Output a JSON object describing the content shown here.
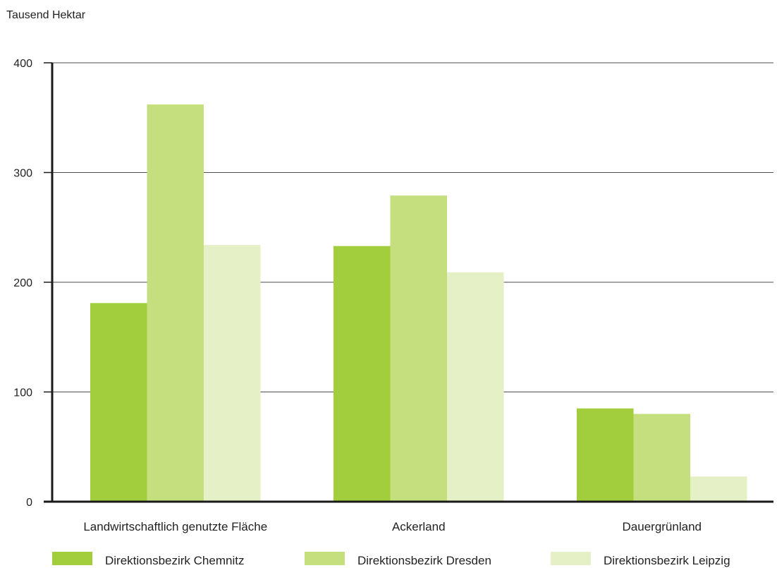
{
  "chart_data": {
    "type": "bar",
    "ylabel": "Tausend Hektar",
    "categories": [
      "Landwirtschaftlich genutzte Fläche",
      "Ackerland",
      "Dauergrünland"
    ],
    "series": [
      {
        "name": "Direktionsbezirk Chemnitz",
        "color": "#a2cd3c",
        "values": [
          181,
          233,
          85
        ]
      },
      {
        "name": "Direktionsbezirk Dresden",
        "color": "#c5de7e",
        "values": [
          362,
          279,
          80
        ]
      },
      {
        "name": "Direktionsbezirk Leipzig",
        "color": "#e5f0c6",
        "values": [
          234,
          209,
          23
        ]
      }
    ],
    "ylim": [
      0,
      400
    ],
    "yticks": [
      0,
      100,
      200,
      300,
      400
    ],
    "grid": true,
    "legend": "bottom"
  }
}
